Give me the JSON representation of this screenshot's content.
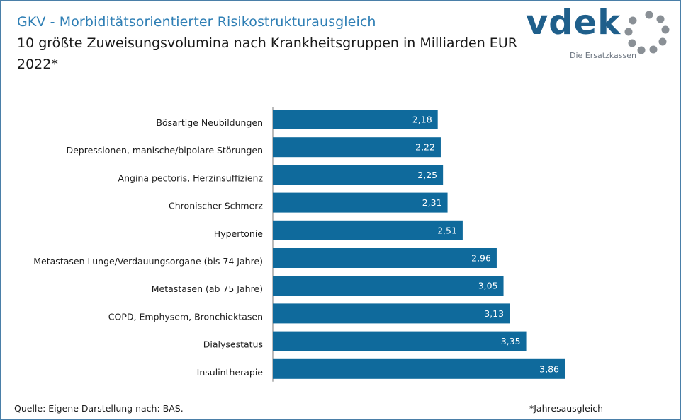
{
  "header": {
    "title": "GKV - Morbiditätsorientierter Risikostrukturausgleich",
    "subtitle": "10 größte Zuweisungsvolumina nach Krankheitsgruppen in Milliarden EUR",
    "year": "2022*"
  },
  "logo": {
    "wordmark": "vdek",
    "tagline": "Die Ersatzkassen"
  },
  "footer": {
    "source": "Quelle: Eigene Darstellung nach: BAS.",
    "note": "*Jahresausgleich"
  },
  "colors": {
    "bar": "#0f6a9c",
    "title": "#2f7fb5",
    "logo_blue": "#1f5f8b",
    "logo_gray": "#8a9096"
  },
  "chart_data": {
    "type": "bar",
    "orientation": "horizontal",
    "title": "10 größte Zuweisungsvolumina nach Krankheitsgruppen in Milliarden EUR",
    "xlabel": "",
    "ylabel": "",
    "xlim": [
      0,
      3.86
    ],
    "grid": false,
    "categories": [
      "Bösartige Neubildungen",
      "Depressionen, manische/bipolare Störungen",
      "Angina pectoris, Herzinsuffizienz",
      "Chronischer Schmerz",
      "Hypertonie",
      "Metastasen Lunge/Verdauungsorgane (bis 74 Jahre)",
      "Metastasen (ab 75 Jahre)",
      "COPD, Emphysem, Bronchiektasen",
      "Dialysestatus",
      "Insulintherapie"
    ],
    "values": [
      2.18,
      2.22,
      2.25,
      2.31,
      2.51,
      2.96,
      3.05,
      3.13,
      3.35,
      3.86
    ],
    "value_labels": [
      "2,18",
      "2,22",
      "2,25",
      "2,31",
      "2,51",
      "2,96",
      "3,05",
      "3,13",
      "3,35",
      "3,86"
    ]
  }
}
